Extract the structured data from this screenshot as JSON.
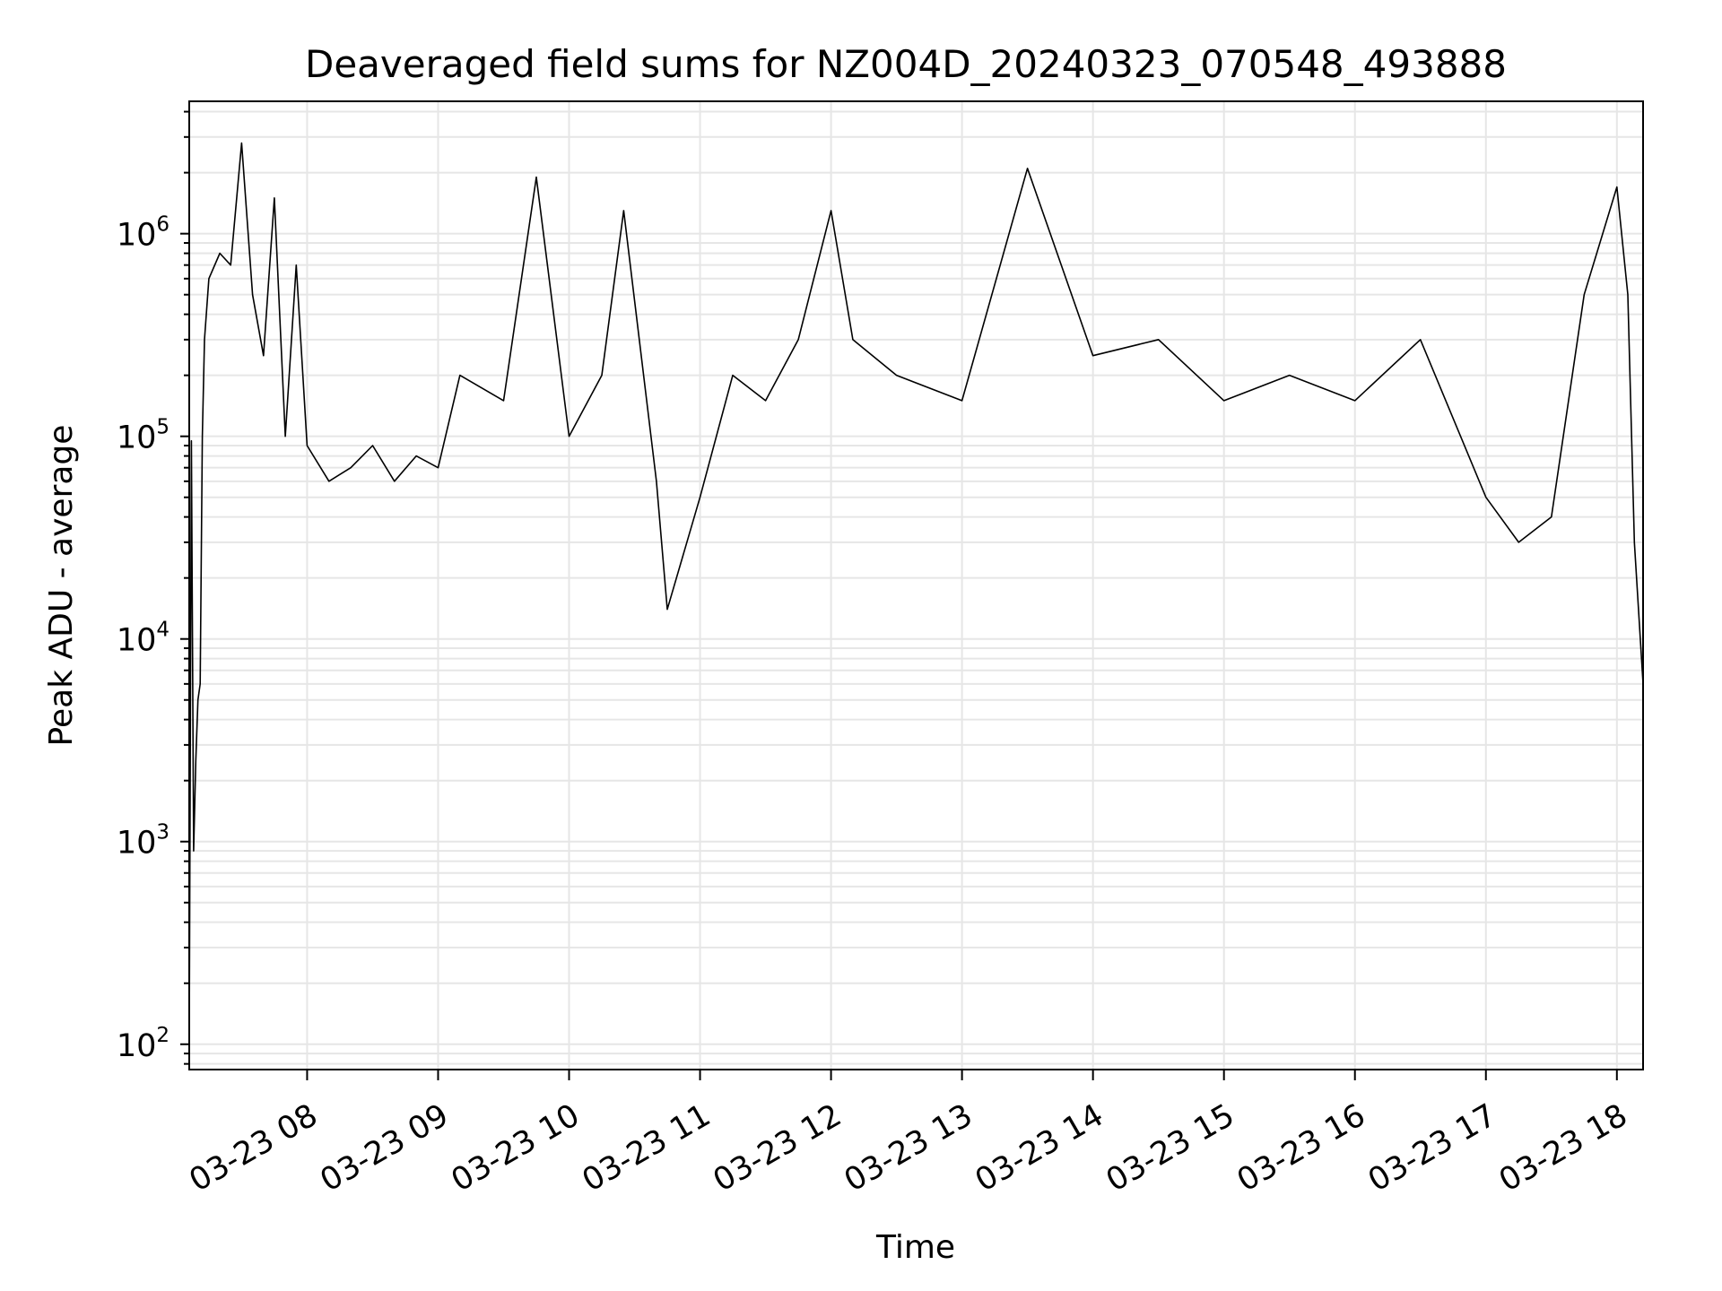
{
  "chart_data": {
    "type": "line",
    "title": "Deaveraged field sums for NZ004D_20240323_070548_493888",
    "xlabel": "Time",
    "ylabel": "Peak ADU - average",
    "y_scale": "log",
    "grid": true,
    "x_ticks": [
      {
        "time": "2024-03-23 08:00",
        "label": "03-23 08"
      },
      {
        "time": "2024-03-23 09:00",
        "label": "03-23 09"
      },
      {
        "time": "2024-03-23 10:00",
        "label": "03-23 10"
      },
      {
        "time": "2024-03-23 11:00",
        "label": "03-23 11"
      },
      {
        "time": "2024-03-23 12:00",
        "label": "03-23 12"
      },
      {
        "time": "2024-03-23 13:00",
        "label": "03-23 13"
      },
      {
        "time": "2024-03-23 14:00",
        "label": "03-23 14"
      },
      {
        "time": "2024-03-23 15:00",
        "label": "03-23 15"
      },
      {
        "time": "2024-03-23 16:00",
        "label": "03-23 16"
      },
      {
        "time": "2024-03-23 17:00",
        "label": "03-23 17"
      },
      {
        "time": "2024-03-23 18:00",
        "label": "03-23 18"
      }
    ],
    "y_ticks": [
      {
        "value": 100,
        "base": "10",
        "exp": "2"
      },
      {
        "value": 1000,
        "base": "10",
        "exp": "3"
      },
      {
        "value": 10000,
        "base": "10",
        "exp": "4"
      },
      {
        "value": 100000,
        "base": "10",
        "exp": "5"
      },
      {
        "value": 1000000,
        "base": "10",
        "exp": "6"
      }
    ],
    "xlim": [
      "2024-03-23 07:06",
      "2024-03-23 18:12"
    ],
    "ylim": [
      75,
      4500000
    ],
    "line_color": "#000000",
    "series": [
      {
        "points": [
          [
            "2024-03-23 07:06",
            100
          ],
          [
            "2024-03-23 07:07",
            95000
          ],
          [
            "2024-03-23 07:08",
            900
          ],
          [
            "2024-03-23 07:09",
            2500
          ],
          [
            "2024-03-23 07:10",
            5000
          ],
          [
            "2024-03-23 07:11",
            6000
          ],
          [
            "2024-03-23 07:12",
            100000
          ],
          [
            "2024-03-23 07:13",
            300000
          ],
          [
            "2024-03-23 07:15",
            600000
          ],
          [
            "2024-03-23 07:20",
            800000
          ],
          [
            "2024-03-23 07:25",
            700000
          ],
          [
            "2024-03-23 07:30",
            2800000
          ],
          [
            "2024-03-23 07:35",
            500000
          ],
          [
            "2024-03-23 07:40",
            250000
          ],
          [
            "2024-03-23 07:45",
            1500000
          ],
          [
            "2024-03-23 07:50",
            100000
          ],
          [
            "2024-03-23 07:55",
            700000
          ],
          [
            "2024-03-23 08:00",
            90000
          ],
          [
            "2024-03-23 08:10",
            60000
          ],
          [
            "2024-03-23 08:20",
            70000
          ],
          [
            "2024-03-23 08:30",
            90000
          ],
          [
            "2024-03-23 08:40",
            60000
          ],
          [
            "2024-03-23 08:50",
            80000
          ],
          [
            "2024-03-23 09:00",
            70000
          ],
          [
            "2024-03-23 09:10",
            200000
          ],
          [
            "2024-03-23 09:30",
            150000
          ],
          [
            "2024-03-23 09:45",
            1900000
          ],
          [
            "2024-03-23 10:00",
            100000
          ],
          [
            "2024-03-23 10:15",
            200000
          ],
          [
            "2024-03-23 10:25",
            1300000
          ],
          [
            "2024-03-23 10:40",
            60000
          ],
          [
            "2024-03-23 10:45",
            14000
          ],
          [
            "2024-03-23 11:00",
            50000
          ],
          [
            "2024-03-23 11:15",
            200000
          ],
          [
            "2024-03-23 11:30",
            150000
          ],
          [
            "2024-03-23 11:45",
            300000
          ],
          [
            "2024-03-23 12:00",
            1300000
          ],
          [
            "2024-03-23 12:10",
            300000
          ],
          [
            "2024-03-23 12:30",
            200000
          ],
          [
            "2024-03-23 13:00",
            150000
          ],
          [
            "2024-03-23 13:30",
            2100000
          ],
          [
            "2024-03-23 14:00",
            250000
          ],
          [
            "2024-03-23 14:30",
            300000
          ],
          [
            "2024-03-23 15:00",
            150000
          ],
          [
            "2024-03-23 15:30",
            200000
          ],
          [
            "2024-03-23 16:00",
            150000
          ],
          [
            "2024-03-23 16:30",
            300000
          ],
          [
            "2024-03-23 17:00",
            50000
          ],
          [
            "2024-03-23 17:15",
            30000
          ],
          [
            "2024-03-23 17:30",
            40000
          ],
          [
            "2024-03-23 17:45",
            500000
          ],
          [
            "2024-03-23 18:00",
            1700000
          ],
          [
            "2024-03-23 18:05",
            500000
          ],
          [
            "2024-03-23 18:08",
            30000
          ],
          [
            "2024-03-23 18:12",
            6000
          ]
        ]
      }
    ]
  }
}
